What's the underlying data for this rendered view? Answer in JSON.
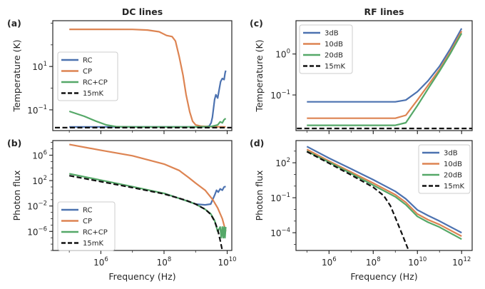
{
  "colors": {
    "RC": "#4c72b0",
    "CP": "#dd8452",
    "RC+CP": "#55a868",
    "3dB": "#4c72b0",
    "10dB": "#dd8452",
    "20dB": "#55a868",
    "15mK": "#111111"
  },
  "chart_data": [
    {
      "id": "a",
      "panel_label": "(a)",
      "title": "DC lines",
      "type": "line",
      "ylabel": "Temperature (K)",
      "xlabel": "",
      "xscale": "log",
      "yscale": "log",
      "xlim": [
        30000.0,
        14000000000.0
      ],
      "ylim": [
        0.011,
        1300
      ],
      "show_x_ticklabels": false,
      "xticks": [
        {
          "v": 1000000.0,
          "label": "",
          "mant": "",
          "exp": ""
        },
        {
          "v": 100000000.0,
          "label": "",
          "mant": "",
          "exp": ""
        },
        {
          "v": 10000000000.0,
          "label": "",
          "mant": "",
          "exp": ""
        }
      ],
      "yticks": [
        {
          "v": 0.1,
          "label": "10^-1",
          "mant": "10",
          "exp": "−1"
        },
        {
          "v": 10,
          "label": "10^1",
          "mant": "10",
          "exp": "1"
        }
      ],
      "legend_position": "center-left",
      "series": [
        {
          "name": "RC",
          "style": "solid",
          "points": [
            [
              100000.0,
              0.0163
            ],
            [
              1000000000.0,
              0.0163
            ],
            [
              2200000000.0,
              0.0166
            ],
            [
              2700000000.0,
              0.018
            ],
            [
              3100000000.0,
              0.025
            ],
            [
              3400000000.0,
              0.045
            ],
            [
              3700000000.0,
              0.12
            ],
            [
              4000000000.0,
              0.3
            ],
            [
              4400000000.0,
              0.5
            ],
            [
              5000000000.0,
              0.35
            ],
            [
              5600000000.0,
              0.9
            ],
            [
              6200000000.0,
              2.0
            ],
            [
              7000000000.0,
              2.8
            ],
            [
              8000000000.0,
              2.5
            ],
            [
              8600000000.0,
              5.0
            ],
            [
              9000000000.0,
              6.5
            ]
          ]
        },
        {
          "name": "CP",
          "style": "solid",
          "points": [
            [
              100000.0,
              520
            ],
            [
              1000000.0,
              520
            ],
            [
              10000000.0,
              515
            ],
            [
              30000000.0,
              480
            ],
            [
              70000000.0,
              400
            ],
            [
              120000000.0,
              270
            ],
            [
              180000000.0,
              240
            ],
            [
              230000000.0,
              150
            ],
            [
              300000000.0,
              30
            ],
            [
              400000000.0,
              4
            ],
            [
              500000000.0,
              0.5
            ],
            [
              650000000.0,
              0.08
            ],
            [
              800000000.0,
              0.03
            ],
            [
              1000000000.0,
              0.02
            ],
            [
              1500000000.0,
              0.0175
            ],
            [
              3000000000.0,
              0.0166
            ],
            [
              9000000000.0,
              0.0163
            ]
          ]
        },
        {
          "name": "RC+CP",
          "style": "solid",
          "points": [
            [
              100000.0,
              0.085
            ],
            [
              300000.0,
              0.05
            ],
            [
              700000.0,
              0.03
            ],
            [
              1500000.0,
              0.02
            ],
            [
              3000000.0,
              0.0167
            ],
            [
              10000000.0,
              0.0163
            ],
            [
              1000000000.0,
              0.0163
            ],
            [
              3000000000.0,
              0.0168
            ],
            [
              5000000000.0,
              0.02
            ],
            [
              6000000000.0,
              0.028
            ],
            [
              7000000000.0,
              0.025
            ],
            [
              8000000000.0,
              0.035
            ],
            [
              9000000000.0,
              0.04
            ]
          ]
        },
        {
          "name": "15mK",
          "style": "dashed",
          "points": [
            [
              35000.0,
              0.015
            ],
            [
              14000000000.0,
              0.015
            ]
          ]
        }
      ]
    },
    {
      "id": "c",
      "panel_label": "(c)",
      "title": "RF lines",
      "type": "line",
      "ylabel": "Temperature (K)",
      "xlabel": "",
      "xscale": "log",
      "yscale": "log",
      "xlim": [
        32000.0,
        3000000000000.0
      ],
      "ylim": [
        0.0135,
        6.5
      ],
      "show_x_ticklabels": false,
      "xticks": [
        {
          "v": 1000000.0,
          "label": "",
          "mant": "",
          "exp": ""
        },
        {
          "v": 100000000.0,
          "label": "",
          "mant": "",
          "exp": ""
        },
        {
          "v": 10000000000.0,
          "label": "",
          "mant": "",
          "exp": ""
        },
        {
          "v": 1000000000000.0,
          "label": "",
          "mant": "",
          "exp": ""
        }
      ],
      "yticks": [
        {
          "v": 0.1,
          "label": "10^-1",
          "mant": "10",
          "exp": "−1"
        },
        {
          "v": 1,
          "label": "10^0",
          "mant": "10",
          "exp": "0"
        }
      ],
      "legend_position": "top-left",
      "series": [
        {
          "name": "3dB",
          "style": "solid",
          "points": [
            [
              100000.0,
              0.068
            ],
            [
              10000000.0,
              0.068
            ],
            [
              1000000000.0,
              0.068
            ],
            [
              3000000000.0,
              0.075
            ],
            [
              10000000000.0,
              0.12
            ],
            [
              30000000000.0,
              0.22
            ],
            [
              100000000000.0,
              0.5
            ],
            [
              300000000000.0,
              1.3
            ],
            [
              1000000000000.0,
              4.2
            ]
          ]
        },
        {
          "name": "10dB",
          "style": "solid",
          "points": [
            [
              100000.0,
              0.027
            ],
            [
              10000000.0,
              0.027
            ],
            [
              1000000000.0,
              0.027
            ],
            [
              3000000000.0,
              0.032
            ],
            [
              10000000000.0,
              0.075
            ],
            [
              30000000000.0,
              0.17
            ],
            [
              100000000000.0,
              0.42
            ],
            [
              300000000000.0,
              1.1
            ],
            [
              1000000000000.0,
              3.6
            ]
          ]
        },
        {
          "name": "20dB",
          "style": "solid",
          "points": [
            [
              100000.0,
              0.0182
            ],
            [
              10000000.0,
              0.0182
            ],
            [
              1000000000.0,
              0.0182
            ],
            [
              3000000000.0,
              0.021
            ],
            [
              10000000000.0,
              0.055
            ],
            [
              30000000000.0,
              0.14
            ],
            [
              100000000000.0,
              0.38
            ],
            [
              300000000000.0,
              1.0
            ],
            [
              1000000000000.0,
              3.2
            ]
          ]
        },
        {
          "name": "15mK",
          "style": "dashed",
          "points": [
            [
              35000.0,
              0.0152
            ],
            [
              3000000000000.0,
              0.0152
            ]
          ]
        }
      ]
    },
    {
      "id": "b",
      "panel_label": "(b)",
      "title": "",
      "type": "line",
      "ylabel": "Photon flux",
      "xlabel": "Frequency (Hz)",
      "xscale": "log",
      "yscale": "log",
      "xlim": [
        30000.0,
        14000000000.0
      ],
      "ylim": [
        1e-09,
        200000000.0
      ],
      "show_x_ticklabels": true,
      "xticks": [
        {
          "v": 1000000.0,
          "label": "10^6",
          "mant": "10",
          "exp": "6"
        },
        {
          "v": 100000000.0,
          "label": "10^8",
          "mant": "10",
          "exp": "8"
        },
        {
          "v": 10000000000.0,
          "label": "10^10",
          "mant": "10",
          "exp": "10"
        }
      ],
      "yticks": [
        {
          "v": 1e-06,
          "label": "10^-6",
          "mant": "10",
          "exp": "−6"
        },
        {
          "v": 0.01,
          "label": "10^-2",
          "mant": "10",
          "exp": "−2"
        },
        {
          "v": 100,
          "label": "10^2",
          "mant": "10",
          "exp": "2"
        },
        {
          "v": 1000000.0,
          "label": "10^6",
          "mant": "10",
          "exp": "6"
        }
      ],
      "legend_position": "bottom-left",
      "series": [
        {
          "name": "RC",
          "style": "solid",
          "points": [
            [
              100000000.0,
              1.0
            ],
            [
              500000000.0,
              0.07
            ],
            [
              1000000000.0,
              0.02
            ],
            [
              2000000000.0,
              0.015
            ],
            [
              3000000000.0,
              0.02
            ],
            [
              4000000000.0,
              0.5
            ],
            [
              4600000000.0,
              3.0
            ],
            [
              5200000000.0,
              1.5
            ],
            [
              6000000000.0,
              5.0
            ],
            [
              7000000000.0,
              3.0
            ],
            [
              8000000000.0,
              10.0
            ],
            [
              9000000000.0,
              12.0
            ]
          ]
        },
        {
          "name": "CP",
          "style": "solid",
          "points": [
            [
              100000.0,
              50000000.0
            ],
            [
              1000000.0,
              6000000.0
            ],
            [
              10000000.0,
              800000.0
            ],
            [
              100000000.0,
              40000.0
            ],
            [
              300000000.0,
              4000.0
            ],
            [
              600000000.0,
              300
            ],
            [
              1000000000.0,
              40
            ],
            [
              2000000000.0,
              3
            ],
            [
              3500000000.0,
              0.1
            ],
            [
              5000000000.0,
              0.005
            ],
            [
              7000000000.0,
              0.0001
            ],
            [
              9000000000.0,
              1e-06
            ]
          ]
        },
        {
          "name": "RC+CP",
          "style": "solid",
          "points": [
            [
              100000.0,
              1200
            ],
            [
              1000000.0,
              120
            ],
            [
              10000000.0,
              11
            ],
            [
              100000000.0,
              1.0
            ],
            [
              500000000.0,
              0.07
            ],
            [
              1000000000.0,
              0.02
            ],
            [
              2000000000.0,
              0.003
            ],
            [
              3000000000.0,
              0.0006
            ],
            [
              4000000000.0,
              5e-05
            ],
            [
              5000000000.0,
              1e-06
            ],
            [
              6000000000.0,
              5e-06
            ],
            [
              6500000000.0,
              1e-07
            ],
            [
              7000000000.0,
              5e-06
            ],
            [
              7500000000.0,
              1e-07
            ],
            [
              8000000000.0,
              5e-06
            ],
            [
              8500000000.0,
              1e-07
            ],
            [
              9000000000.0,
              5e-06
            ]
          ]
        },
        {
          "name": "15mK",
          "style": "dashed",
          "points": [
            [
              100000.0,
              600
            ],
            [
              1000000.0,
              70
            ],
            [
              10000000.0,
              8
            ],
            [
              100000000.0,
              0.8
            ],
            [
              500000000.0,
              0.08
            ],
            [
              1000000000.0,
              0.02
            ],
            [
              2000000000.0,
              0.003
            ],
            [
              3000000000.0,
              0.0005
            ],
            [
              4000000000.0,
              4e-05
            ],
            [
              5000000000.0,
              2e-06
            ],
            [
              6000000000.0,
              4e-08
            ],
            [
              7000000000.0,
              1e-09
            ]
          ]
        }
      ]
    },
    {
      "id": "d",
      "panel_label": "(d)",
      "title": "",
      "type": "line",
      "ylabel": "Photon flux",
      "xlabel": "Frequency (Hz)",
      "xscale": "log",
      "yscale": "log",
      "xlim": [
        32000.0,
        3000000000000.0
      ],
      "ylim": [
        3e-06,
        8000
      ],
      "show_x_ticklabels": true,
      "xticks": [
        {
          "v": 1000000.0,
          "label": "10^6",
          "mant": "10",
          "exp": "6"
        },
        {
          "v": 100000000.0,
          "label": "10^8",
          "mant": "10",
          "exp": "8"
        },
        {
          "v": 10000000000.0,
          "label": "10^10",
          "mant": "10",
          "exp": "10"
        },
        {
          "v": 1000000000000.0,
          "label": "10^12",
          "mant": "10",
          "exp": "12"
        }
      ],
      "yticks": [
        {
          "v": 0.0001,
          "label": "10^-4",
          "mant": "10",
          "exp": "−4"
        },
        {
          "v": 0.1,
          "label": "10^-1",
          "mant": "10",
          "exp": "−1"
        },
        {
          "v": 100,
          "label": "10^2",
          "mant": "10",
          "exp": "2"
        }
      ],
      "legend_position": "top-right",
      "series": [
        {
          "name": "3dB",
          "style": "solid",
          "points": [
            [
              100000.0,
              2500
            ],
            [
              1000000.0,
              250
            ],
            [
              10000000.0,
              30
            ],
            [
              100000000.0,
              3.5
            ],
            [
              1000000000.0,
              0.35
            ],
            [
              3000000000.0,
              0.08
            ],
            [
              10000000000.0,
              0.009
            ],
            [
              30000000000.0,
              0.003
            ],
            [
              100000000000.0,
              0.001
            ],
            [
              1000000000000.0,
              0.0001
            ]
          ]
        },
        {
          "name": "10dB",
          "style": "solid",
          "points": [
            [
              100000.0,
              1400
            ],
            [
              1000000.0,
              140
            ],
            [
              10000000.0,
              16
            ],
            [
              100000000.0,
              1.8
            ],
            [
              1000000000.0,
              0.18
            ],
            [
              3000000000.0,
              0.04
            ],
            [
              10000000000.0,
              0.004
            ],
            [
              30000000000.0,
              0.0013
            ],
            [
              100000000000.0,
              0.0005
            ],
            [
              1000000000000.0,
              5e-05
            ]
          ]
        },
        {
          "name": "20dB",
          "style": "solid",
          "points": [
            [
              100000.0,
              1000
            ],
            [
              1000000.0,
              110
            ],
            [
              10000000.0,
              12
            ],
            [
              100000000.0,
              1.2
            ],
            [
              1000000000.0,
              0.12
            ],
            [
              3000000000.0,
              0.025
            ],
            [
              10000000000.0,
              0.0025
            ],
            [
              30000000000.0,
              0.0008
            ],
            [
              100000000000.0,
              0.0003
            ],
            [
              1000000000000.0,
              2.8e-05
            ]
          ]
        },
        {
          "name": "15mK",
          "style": "dashed",
          "points": [
            [
              100000.0,
              900
            ],
            [
              1000000.0,
              90
            ],
            [
              10000000.0,
              9
            ],
            [
              100000000.0,
              0.8
            ],
            [
              300000000.0,
              0.15
            ],
            [
              600000000.0,
              0.02
            ],
            [
              1000000000.0,
              0.002
            ],
            [
              2000000000.0,
              8e-05
            ],
            [
              4000000000.0,
              3e-06
            ]
          ]
        }
      ]
    }
  ]
}
